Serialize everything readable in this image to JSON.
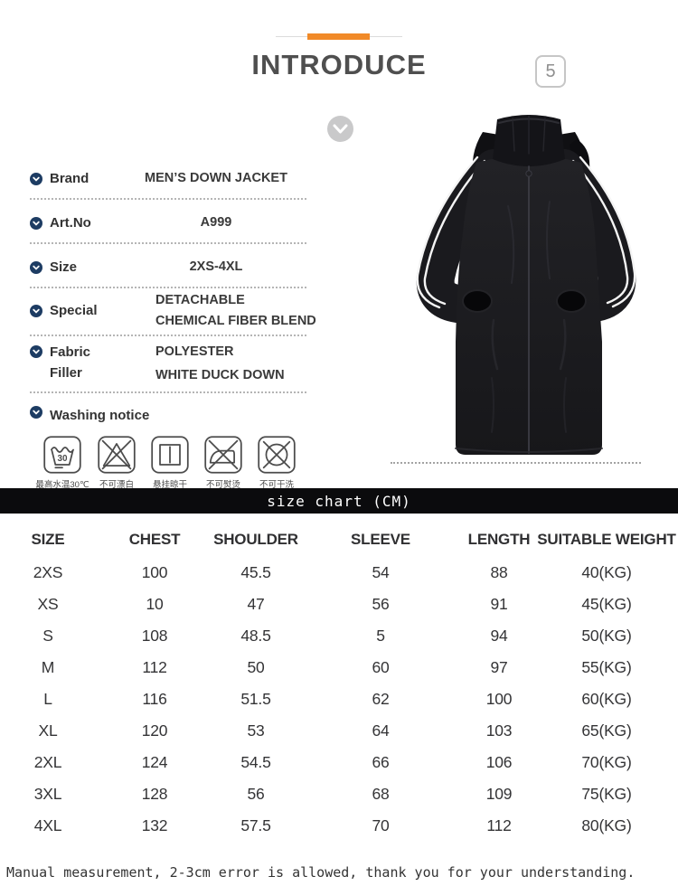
{
  "header": {
    "title": "INTRODUCE",
    "page_badge": "5"
  },
  "product": {
    "details": [
      {
        "label": "Brand",
        "values": [
          "MEN’S DOWN JACKET"
        ]
      },
      {
        "label": "Art.No",
        "values": [
          "A999"
        ]
      },
      {
        "label": "Size",
        "values": [
          "2XS-4XL"
        ]
      },
      {
        "label": "Special",
        "values": [
          "DETACHABLE",
          "CHEMICAL FIBER BLEND"
        ]
      },
      {
        "label": "Fabric Filler",
        "label_lines": [
          "Fabric",
          "Filler"
        ],
        "values": [
          "POLYESTER",
          "WHITE DUCK DOWN"
        ]
      },
      {
        "label": "Washing notice",
        "values": []
      }
    ],
    "washing_icons": [
      {
        "name": "max-water-temp-30-icon",
        "caption": "最高水温30℃",
        "number": "30"
      },
      {
        "name": "no-bleach-icon",
        "caption": "不可漂白"
      },
      {
        "name": "hang-dry-icon",
        "caption": "悬挂晾干"
      },
      {
        "name": "no-iron-icon",
        "caption": "不可熨烫"
      },
      {
        "name": "no-dry-clean-icon",
        "caption": "不可干洗"
      }
    ]
  },
  "size_chart": {
    "bar_title": "size chart (CM)",
    "columns": [
      "SIZE",
      "CHEST",
      "SHOULDER",
      "SLEEVE",
      "LENGTH",
      "SUITABLE WEIGHT"
    ],
    "rows": [
      [
        "2XS",
        "100",
        "45.5",
        "54",
        "88",
        "40(KG)"
      ],
      [
        "XS",
        "10",
        "47",
        "56",
        "91",
        "45(KG)"
      ],
      [
        "S",
        "108",
        "48.5",
        "5",
        "94",
        "50(KG)"
      ],
      [
        "M",
        "112",
        "50",
        "60",
        "97",
        "55(KG)"
      ],
      [
        "L",
        "116",
        "51.5",
        "62",
        "100",
        "60(KG)"
      ],
      [
        "XL",
        "120",
        "53",
        "64",
        "103",
        "65(KG)"
      ],
      [
        "2XL",
        "124",
        "54.5",
        "66",
        "106",
        "70(KG)"
      ],
      [
        "3XL",
        "128",
        "56",
        "68",
        "109",
        "75(KG)"
      ],
      [
        "4XL",
        "132",
        "57.5",
        "70",
        "112",
        "80(KG)"
      ]
    ]
  },
  "footer": {
    "note": "Manual measurement, 2-3cm error is allowed, thank you for your understanding."
  },
  "colors": {
    "accent_orange": "#f18a28",
    "bullet_navy": "#1d3c63",
    "bar_black": "#0b0b0d"
  }
}
